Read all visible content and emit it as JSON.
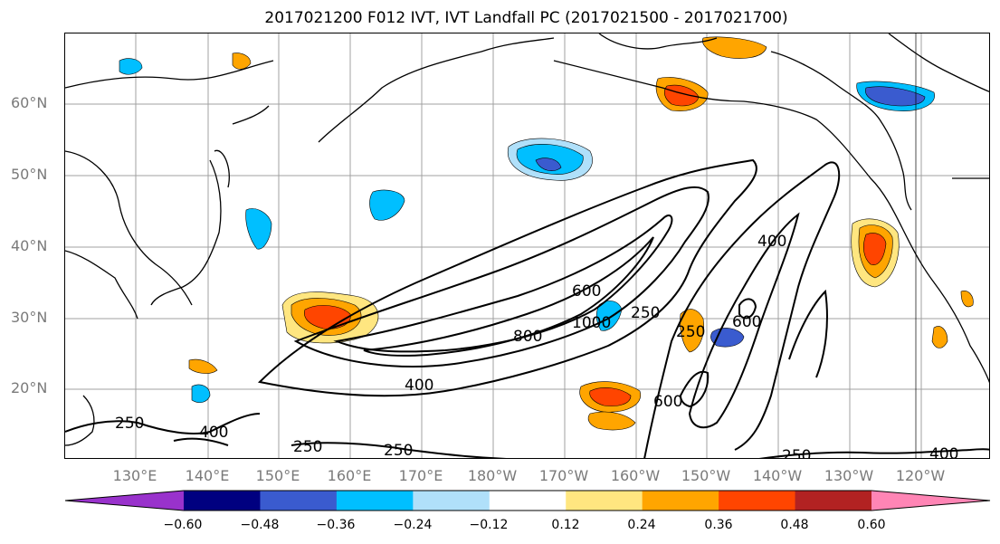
{
  "title": "2017021200 F012 IVT, IVT Landfall PC (2017021500 - 2017021700)",
  "lat_labels": [
    "60°N",
    "50°N",
    "40°N",
    "30°N",
    "20°N"
  ],
  "lon_labels": [
    "130°E",
    "140°E",
    "150°E",
    "160°E",
    "170°E",
    "180°W",
    "170°W",
    "160°W",
    "150°W",
    "140°W",
    "130°W",
    "120°W"
  ],
  "contour_labels": [
    "250",
    "400",
    "600",
    "800",
    "1000",
    "400",
    "250",
    "600",
    "250",
    "400",
    "250",
    "250",
    "250",
    "600",
    "400"
  ],
  "colorbar": {
    "ticks": [
      "−0.60",
      "−0.48",
      "−0.36",
      "−0.24",
      "−0.12",
      "0.12",
      "0.24",
      "0.36",
      "0.48",
      "0.60"
    ],
    "colors": [
      "#9932cc",
      "#000080",
      "#3a5bcf",
      "#00bfff",
      "#b0e0fa",
      "#ffffff",
      "#ffe680",
      "#ffa500",
      "#ff4500",
      "#b22222",
      "#ff85b5"
    ]
  }
}
